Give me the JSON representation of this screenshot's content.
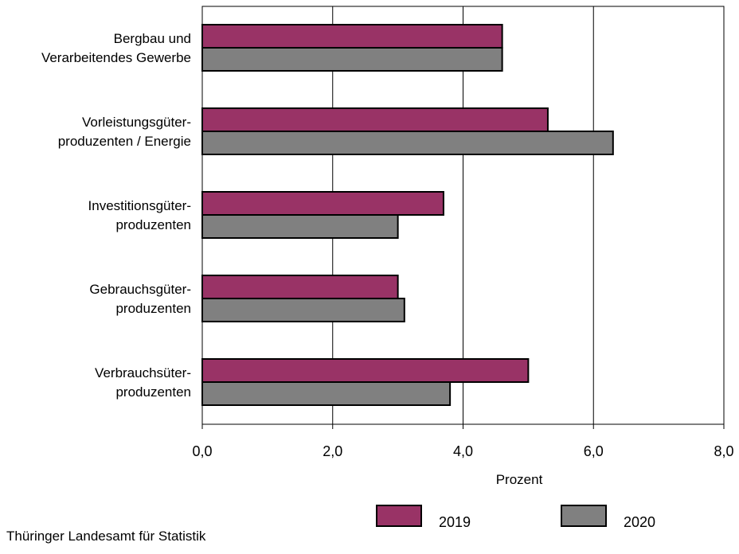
{
  "source_note": "Thüringer Landesamt für Statistik",
  "colors": {
    "series_2019": "#993366",
    "series_2020": "#808080",
    "grid": "#000000",
    "background": "#ffffff"
  },
  "chart_data": {
    "type": "bar",
    "orientation": "horizontal",
    "categories": [
      [
        "Bergbau und",
        "Verarbeitendes Gewerbe"
      ],
      [
        "Vorleistungsgüter-",
        "produzenten /  Energie"
      ],
      [
        "Investitionsgüter-",
        "produzenten"
      ],
      [
        "Gebrauchsgüter-",
        "produzenten"
      ],
      [
        "Verbrauchsüter-",
        "produzenten"
      ]
    ],
    "series": [
      {
        "name": "2019",
        "values": [
          4.6,
          5.3,
          3.7,
          3.0,
          5.0
        ]
      },
      {
        "name": "2020",
        "values": [
          4.6,
          6.3,
          3.0,
          3.1,
          3.8
        ]
      }
    ],
    "xlabel": "Prozent",
    "ylabel": "",
    "xlim": [
      0,
      8
    ],
    "xticks": [
      0,
      2,
      4,
      6,
      8
    ],
    "xtick_labels": [
      "0,0",
      "2,0",
      "4,0",
      "6,0",
      "8,0"
    ],
    "grid": "vertical",
    "legend_position": "bottom"
  }
}
